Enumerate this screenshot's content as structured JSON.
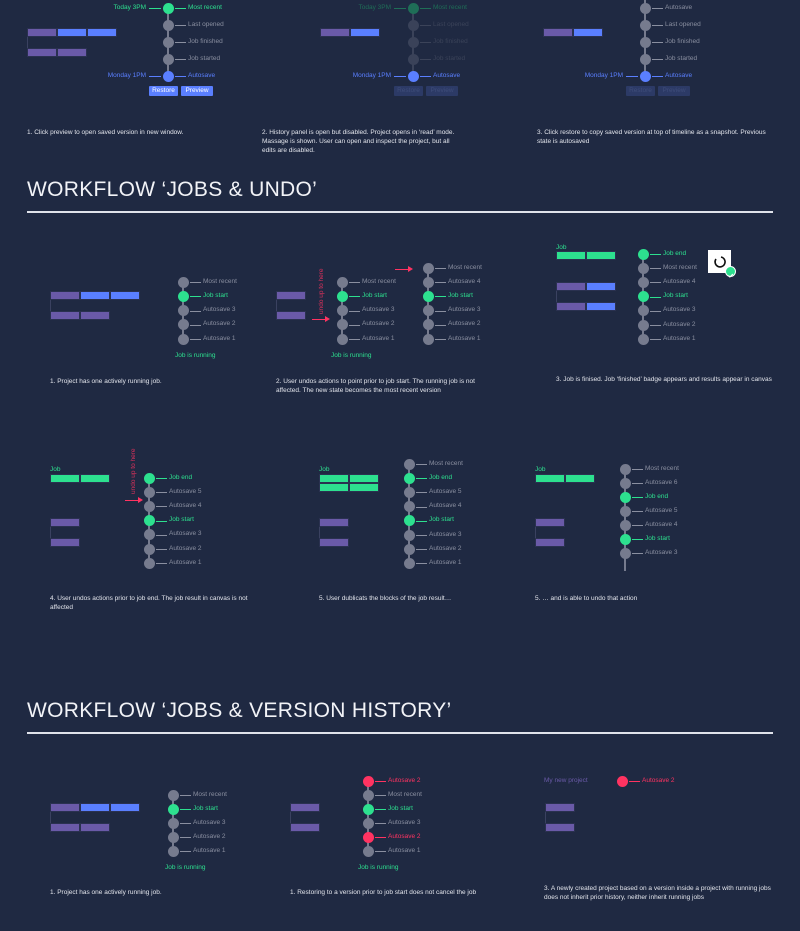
{
  "colors": {
    "background": "#1f2942",
    "node": "#767b8e",
    "green": "#2de08f",
    "blue": "#5a7fff",
    "purple": "#6a5aa8",
    "red": "#ff3361"
  },
  "headers": [
    "WORKFLOW ‘JOBS & UNDO’",
    "WORKFLOW ‘JOBS & VERSION HISTORY’"
  ],
  "panels": [
    {
      "caption": "1. Click preview to open saved version in new window.",
      "buttons": [
        "Restore",
        "Preview"
      ],
      "timelines": [
        {
          "nodes": [
            {
              "label": "Most recent",
              "state": "green",
              "time": "Today 3PM"
            },
            {
              "label": "Last opened",
              "state": "gray"
            },
            {
              "label": "Job finished",
              "state": "gray"
            },
            {
              "label": "Job started",
              "state": "gray"
            },
            {
              "label": "Autosave",
              "state": "blue",
              "time": "Monday 1PM"
            }
          ]
        }
      ]
    },
    {
      "caption": "2. History panel is open but disabled. Project opens in ‘read’ mode. Massage is shown. User can open and inspect the project, but all edits are disabled.",
      "buttons": [
        "Restore",
        "Preview"
      ],
      "timelines": [
        {
          "nodes": [
            {
              "label": "Most recent",
              "state": "dimgreen",
              "time": "Today 3PM"
            },
            {
              "label": "Last opened",
              "state": "dim"
            },
            {
              "label": "Job finished",
              "state": "dim"
            },
            {
              "label": "Job started",
              "state": "dim"
            },
            {
              "label": "Autosave",
              "state": "blue",
              "time": "Monday 1PM"
            }
          ]
        }
      ]
    },
    {
      "caption": "3. Click restore to copy saved version at top of timeline as a snapshot. Previous state is autosaved",
      "buttons": [
        "Restore",
        "Preview"
      ],
      "timelines": [
        {
          "nodes": [
            {
              "label": "Autosave",
              "state": "gray"
            },
            {
              "label": "Last opened",
              "state": "gray"
            },
            {
              "label": "Job finished",
              "state": "gray"
            },
            {
              "label": "Job started",
              "state": "gray"
            },
            {
              "label": "Autosave",
              "state": "blue",
              "time": "Monday 1PM"
            }
          ]
        }
      ]
    },
    {
      "caption": "1. Project has one actively running job.",
      "status": "Job is running",
      "timelines": [
        {
          "nodes": [
            {
              "label": "Most recent",
              "state": "gray"
            },
            {
              "label": "Job start",
              "state": "green"
            },
            {
              "label": "Autosave 3",
              "state": "gray"
            },
            {
              "label": "Autosave 2",
              "state": "gray"
            },
            {
              "label": "Autosave 1",
              "state": "gray"
            }
          ]
        }
      ]
    },
    {
      "caption": "2. User undos actions to point prior to job start. The running job is not affected. The new state becomes the most recent version",
      "status": "Job is running",
      "annotation": "undo up to here",
      "timelines": [
        {
          "nodes": [
            {
              "label": "Most recent",
              "state": "gray"
            },
            {
              "label": "Job start",
              "state": "green"
            },
            {
              "label": "Autosave 3",
              "state": "gray"
            },
            {
              "label": "Autosave 2",
              "state": "gray"
            },
            {
              "label": "Autosave 1",
              "state": "gray"
            }
          ]
        },
        {
          "nodes": [
            {
              "label": "Most recent",
              "state": "gray"
            },
            {
              "label": "Autosave 4",
              "state": "gray"
            },
            {
              "label": "Job start",
              "state": "green"
            },
            {
              "label": "Autosave 3",
              "state": "gray"
            },
            {
              "label": "Autosave 2",
              "state": "gray"
            },
            {
              "label": "Autosave 1",
              "state": "gray"
            }
          ]
        }
      ]
    },
    {
      "caption": "3. Job is finised. Job ‘finished’ badge appears and results appear in canvas",
      "job_label": "Job",
      "timelines": [
        {
          "nodes": [
            {
              "label": "Job end",
              "state": "green"
            },
            {
              "label": "Most recent",
              "state": "gray"
            },
            {
              "label": "Autosave 4",
              "state": "gray"
            },
            {
              "label": "Job start",
              "state": "green"
            },
            {
              "label": "Autosave 3",
              "state": "gray"
            },
            {
              "label": "Autosave 2",
              "state": "gray"
            },
            {
              "label": "Autosave 1",
              "state": "gray"
            }
          ]
        }
      ]
    },
    {
      "caption": "4. User undos actions prior to job end. The job result in canvas is not affected",
      "job_label": "Job",
      "annotation": "undo up to here",
      "timelines": [
        {
          "nodes": [
            {
              "label": "Job end",
              "state": "green"
            },
            {
              "label": "Autosave 5",
              "state": "gray"
            },
            {
              "label": "Autosave 4",
              "state": "gray"
            },
            {
              "label": "Job start",
              "state": "green"
            },
            {
              "label": "Autosave 3",
              "state": "gray"
            },
            {
              "label": "Autosave 2",
              "state": "gray"
            },
            {
              "label": "Autosave 1",
              "state": "gray"
            }
          ]
        }
      ]
    },
    {
      "caption": "5. User dublicats the blocks of the job result…",
      "job_label": "Job",
      "timelines": [
        {
          "nodes": [
            {
              "label": "Most recent",
              "state": "gray"
            },
            {
              "label": "Job end",
              "state": "green"
            },
            {
              "label": "Autosave 5",
              "state": "gray"
            },
            {
              "label": "Autosave 4",
              "state": "gray"
            },
            {
              "label": "Job start",
              "state": "green"
            },
            {
              "label": "Autosave 3",
              "state": "gray"
            },
            {
              "label": "Autosave 2",
              "state": "gray"
            },
            {
              "label": "Autosave 1",
              "state": "gray"
            }
          ]
        }
      ]
    },
    {
      "caption": "5. … and is able to undo that action",
      "job_label": "Job",
      "timelines": [
        {
          "nodes": [
            {
              "label": "Most recent",
              "state": "gray"
            },
            {
              "label": "Autosave 6",
              "state": "gray"
            },
            {
              "label": "Job end",
              "state": "green"
            },
            {
              "label": "Autosave 5",
              "state": "gray"
            },
            {
              "label": "Autosave 4",
              "state": "gray"
            },
            {
              "label": "Job start",
              "state": "green"
            },
            {
              "label": "Autosave 3",
              "state": "gray"
            }
          ]
        }
      ]
    },
    {
      "caption": "1. Project has one actively running job.",
      "status": "Job is running",
      "timelines": [
        {
          "nodes": [
            {
              "label": "Most recent",
              "state": "gray"
            },
            {
              "label": "Job start",
              "state": "green"
            },
            {
              "label": "Autosave 3",
              "state": "gray"
            },
            {
              "label": "Autosave 2",
              "state": "gray"
            },
            {
              "label": "Autosave 1",
              "state": "gray"
            }
          ]
        }
      ]
    },
    {
      "caption": "1. Restoring to a version prior to job start does not cancel the job",
      "status": "Job is running",
      "timelines": [
        {
          "nodes": [
            {
              "label": "Autosave 2",
              "state": "red"
            },
            {
              "label": "Most recent",
              "state": "gray"
            },
            {
              "label": "Job start",
              "state": "green"
            },
            {
              "label": "Autosave 3",
              "state": "gray"
            },
            {
              "label": "Autosave 2",
              "state": "red"
            },
            {
              "label": "Autosave 1",
              "state": "gray"
            }
          ]
        }
      ]
    },
    {
      "caption": "3. A newly created project based on a version inside a project with running jobs does not inherit prior history, neither inherit running jobs",
      "project_label": "My new project",
      "timelines": [
        {
          "nodes": [
            {
              "label": "Autosave 2",
              "state": "red"
            }
          ]
        }
      ]
    }
  ]
}
